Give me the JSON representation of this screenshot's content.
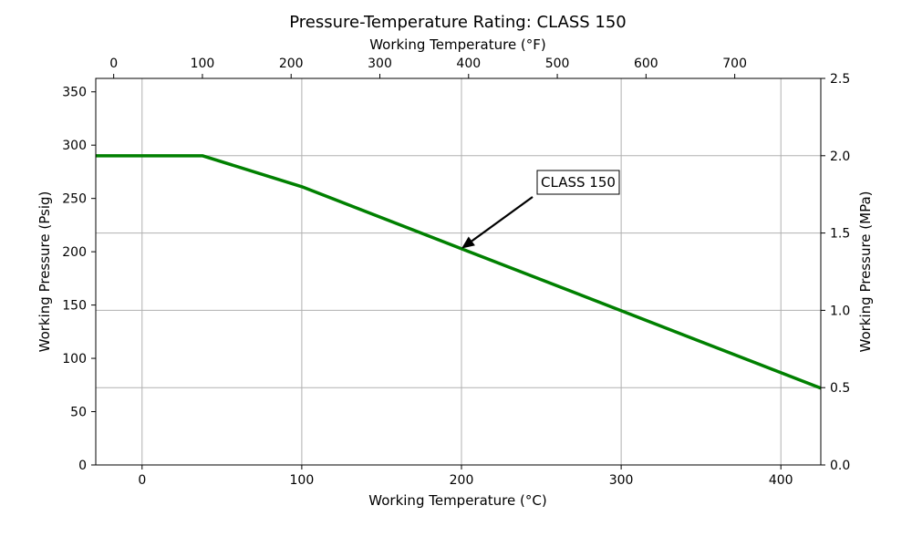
{
  "chart_data": {
    "type": "line",
    "title": "Pressure-Temperature Rating: CLASS 150",
    "x_bottom": {
      "label": "Working Temperature (°C)",
      "range": [
        -29,
        425
      ],
      "ticks": [
        0,
        100,
        200,
        300,
        400
      ]
    },
    "x_top": {
      "label": "Working Temperature (°F)",
      "ticks": [
        0,
        100,
        200,
        300,
        400,
        500,
        600,
        700
      ]
    },
    "y_left": {
      "label": "Working Pressure (Psig)",
      "range": [
        0,
        362.6
      ],
      "ticks": [
        0,
        50,
        100,
        150,
        200,
        250,
        300,
        350
      ]
    },
    "y_right": {
      "label": "Working Pressure (MPa)",
      "range": [
        0,
        2.5
      ],
      "ticks": [
        "0.0",
        "0.5",
        "1.0",
        "1.5",
        "2.0",
        "2.5"
      ]
    },
    "grid": true,
    "series": [
      {
        "name": "CLASS 150",
        "color": "#008000",
        "x": [
          -29,
          38,
          100,
          425
        ],
        "y": [
          290,
          290,
          261,
          72
        ]
      }
    ],
    "annotation": {
      "text": "CLASS 150",
      "target": [
        200,
        203
      ]
    }
  }
}
